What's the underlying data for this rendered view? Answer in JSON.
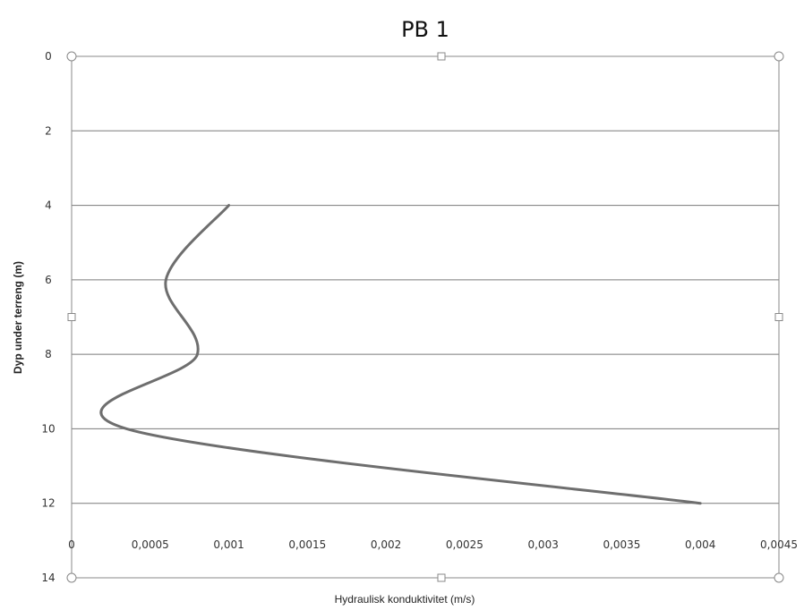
{
  "chart_data": {
    "type": "line",
    "title": "PB 1",
    "xlabel": "Hydraulisk konduktivitet (m/s)",
    "ylabel": "Dyp under terreng (m)",
    "xlim": [
      0,
      0.0045
    ],
    "ylim": [
      0,
      14
    ],
    "y_inverted": true,
    "grid": "horizontal",
    "legend": "none",
    "x_ticks": [
      "0",
      "0,0005",
      "0,001",
      "0,0015",
      "0,002",
      "0,0025",
      "0,003",
      "0,0035",
      "0,004",
      "0,0045"
    ],
    "x_tick_values": [
      0,
      0.0005,
      0.001,
      0.0015,
      0.002,
      0.0025,
      0.003,
      0.0035,
      0.004,
      0.0045
    ],
    "y_ticks": [
      "0",
      "2",
      "4",
      "6",
      "8",
      "10",
      "12",
      "14"
    ],
    "y_tick_values": [
      0,
      2,
      4,
      6,
      8,
      10,
      12,
      14
    ],
    "series": [
      {
        "color": "#6e6e6e",
        "smooth": true,
        "points": [
          {
            "x": 0.001,
            "y": 4
          },
          {
            "x": 0.0006,
            "y": 6
          },
          {
            "x": 0.0008,
            "y": 8
          },
          {
            "x": 0.00035,
            "y": 10
          },
          {
            "x": 0.004,
            "y": 12
          }
        ]
      }
    ]
  }
}
